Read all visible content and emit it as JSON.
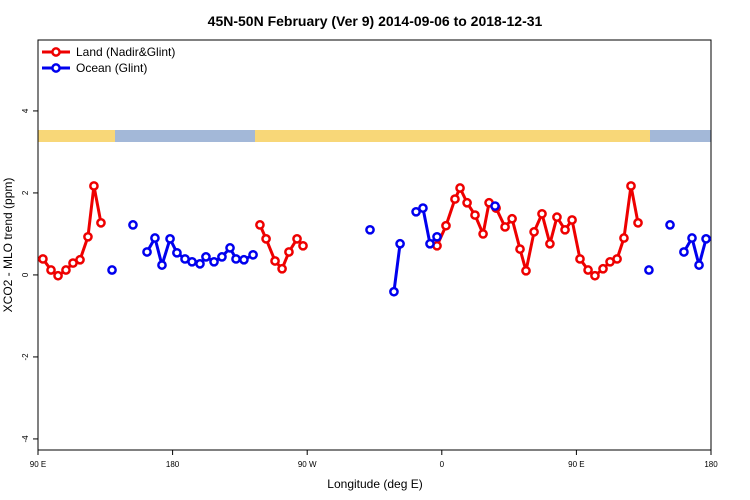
{
  "chart_data": {
    "type": "line",
    "title": "45N-50N February (Ver 9)   2014-09-06 to 2018-12-31",
    "xlabel": "Longitude (deg E)",
    "ylabel": "XCO2 - MLO trend (ppm)",
    "xlim": [
      90,
      540
    ],
    "xticks": [
      {
        "value": 90,
        "label": "90 E"
      },
      180,
      {
        "value": 270,
        "label": "90 W"
      },
      {
        "value": 360,
        "label": "0"
      },
      {
        "value": 450,
        "label": "90 E"
      },
      {
        "value": 540,
        "label": "180"
      }
    ],
    "ylim": [
      -4.27,
      5.73
    ],
    "yticks": [
      -4,
      -2,
      0,
      2,
      4
    ],
    "legend": "top-left",
    "series": [
      {
        "name": "Land (Nadir&Glint)",
        "color": "#ee0000",
        "x": [
          93.3,
          98.7,
          103.4,
          108.7,
          113.4,
          118.1,
          123.4,
          127.4,
          132.1,
          null,
          238.4,
          242.5,
          248.5,
          253.2,
          257.8,
          263.2,
          267.2,
          null,
          356.8,
          362.8,
          368.8,
          372.2,
          376.9,
          382.2,
          387.6,
          391.6,
          396.3,
          402.3,
          407.0,
          412.3,
          416.3,
          421.7,
          427.0,
          432.3,
          437.0,
          442.4,
          447.1,
          452.4,
          457.8,
          462.4,
          467.8,
          472.5,
          477.2,
          481.8,
          486.5,
          491.2
        ],
        "values": [
          0.39,
          0.12,
          -0.02,
          0.12,
          0.29,
          0.37,
          0.93,
          2.17,
          1.27,
          null,
          1.22,
          0.88,
          0.34,
          0.15,
          0.56,
          0.88,
          0.71,
          null,
          0.71,
          1.2,
          1.85,
          2.12,
          1.76,
          1.46,
          1.0,
          1.76,
          1.63,
          1.17,
          1.37,
          0.63,
          0.1,
          1.05,
          1.49,
          0.76,
          1.41,
          1.1,
          1.34,
          0.39,
          0.12,
          -0.02,
          0.15,
          0.32,
          0.39,
          0.9,
          2.17,
          1.27
        ]
      },
      {
        "name": "Ocean (Glint)",
        "color": "#0000ee",
        "x": [
          139.5,
          null,
          153.5,
          null,
          162.9,
          168.2,
          172.9,
          178.3,
          182.9,
          188.3,
          193.0,
          198.3,
          202.3,
          207.7,
          213.0,
          218.4,
          222.4,
          227.7,
          233.8,
          null,
          312.0,
          null,
          328.0,
          332.1,
          null,
          342.8,
          347.4,
          352.1,
          356.8,
          null,
          395.6,
          null,
          498.5,
          null,
          512.6,
          null,
          521.9,
          527.3,
          532.0,
          536.7
        ],
        "values": [
          0.12,
          null,
          1.22,
          null,
          0.56,
          0.9,
          0.24,
          0.88,
          0.54,
          0.39,
          0.32,
          0.27,
          0.44,
          0.32,
          0.44,
          0.66,
          0.39,
          0.37,
          0.49,
          null,
          1.1,
          null,
          -0.41,
          0.76,
          null,
          1.54,
          1.63,
          0.76,
          0.93,
          null,
          1.68,
          null,
          0.12,
          null,
          1.22,
          null,
          0.56,
          0.9,
          0.24,
          0.88
        ]
      }
    ]
  }
}
